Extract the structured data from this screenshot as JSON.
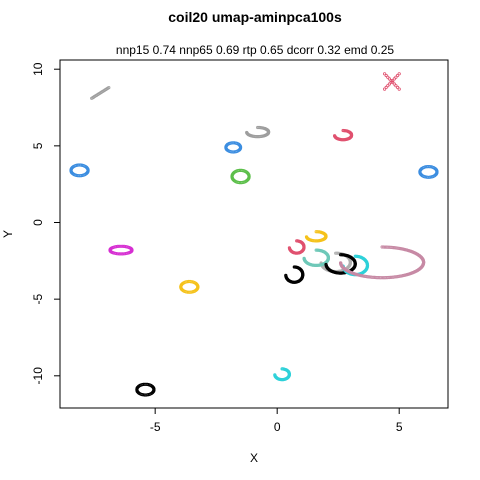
{
  "chart_data": {
    "type": "scatter",
    "title": "coil20 umap-aminpca100s",
    "subtitle": "nnp15 0.74 nnp65 0.69 rtp 0.65 dcorr 0.32 emd 0.25",
    "xlabel": "X",
    "ylabel": "Y",
    "xlim": [
      -8.9,
      7.0
    ],
    "ylim": [
      -12.1,
      10.6
    ],
    "x_ticks": [
      -5,
      0,
      5
    ],
    "y_ticks": [
      -10,
      -5,
      0,
      5,
      10
    ],
    "grid": false,
    "legend": "none",
    "clusters": [
      {
        "color": "#9e9e9e",
        "shape": "line",
        "x1": -7.6,
        "y1": 8.1,
        "x2": -6.9,
        "y2": 8.8
      },
      {
        "color": "#e0516f",
        "shape": "cross",
        "cx": 4.7,
        "cy": 9.2,
        "rx": 0.3,
        "ry": 0.5
      },
      {
        "color": "#9e9e9e",
        "shape": "arc",
        "cx": -0.8,
        "cy": 5.9,
        "rx": 0.45,
        "ry": 0.3
      },
      {
        "color": "#e0516f",
        "shape": "arc",
        "cx": 2.7,
        "cy": 5.7,
        "rx": 0.35,
        "ry": 0.3
      },
      {
        "color": "#3b8de0",
        "shape": "ring",
        "cx": -1.8,
        "cy": 4.9,
        "rx": 0.3,
        "ry": 0.3
      },
      {
        "color": "#3b8de0",
        "shape": "ring",
        "cx": -8.1,
        "cy": 3.4,
        "rx": 0.35,
        "ry": 0.35
      },
      {
        "color": "#3b8de0",
        "shape": "ring",
        "cx": 6.2,
        "cy": 3.3,
        "rx": 0.35,
        "ry": 0.35
      },
      {
        "color": "#5cbf4a",
        "shape": "ring",
        "cx": -1.5,
        "cy": 3.0,
        "rx": 0.35,
        "ry": 0.4
      },
      {
        "color": "#d62fd2",
        "shape": "ring",
        "cx": -6.4,
        "cy": -1.8,
        "rx": 0.45,
        "ry": 0.25
      },
      {
        "color": "#f5c21b",
        "shape": "ring",
        "cx": -3.6,
        "cy": -4.2,
        "rx": 0.35,
        "ry": 0.35
      },
      {
        "color": "#000000",
        "shape": "arc",
        "cx": 0.7,
        "cy": -3.4,
        "rx": 0.35,
        "ry": 0.5
      },
      {
        "color": "#000000",
        "shape": "ring",
        "cx": -5.4,
        "cy": -10.9,
        "rx": 0.35,
        "ry": 0.35
      },
      {
        "color": "#2ed1d9",
        "shape": "arc",
        "cx": 0.2,
        "cy": -9.9,
        "rx": 0.3,
        "ry": 0.35
      },
      {
        "color": "#f5c21b",
        "shape": "arc",
        "cx": 1.6,
        "cy": -0.9,
        "rx": 0.4,
        "ry": 0.3
      },
      {
        "color": "#e0516f",
        "shape": "arc",
        "cx": 0.8,
        "cy": -1.6,
        "rx": 0.3,
        "ry": 0.4
      },
      {
        "color": "#b0b0b0",
        "shape": "arc",
        "cx": 2.4,
        "cy": -2.6,
        "rx": 0.6,
        "ry": 0.6
      },
      {
        "color": "#6ec8b8",
        "shape": "arc",
        "cx": 1.6,
        "cy": -2.3,
        "rx": 0.5,
        "ry": 0.5
      },
      {
        "color": "#000000",
        "shape": "arc",
        "cx": 2.6,
        "cy": -2.7,
        "rx": 0.6,
        "ry": 0.6
      },
      {
        "color": "#2ed1d9",
        "shape": "arc",
        "cx": 3.2,
        "cy": -2.8,
        "rx": 0.5,
        "ry": 0.6
      },
      {
        "color": "#c78aa5",
        "shape": "arc",
        "cx": 4.3,
        "cy": -2.6,
        "rx": 1.7,
        "ry": 1.0
      }
    ]
  }
}
